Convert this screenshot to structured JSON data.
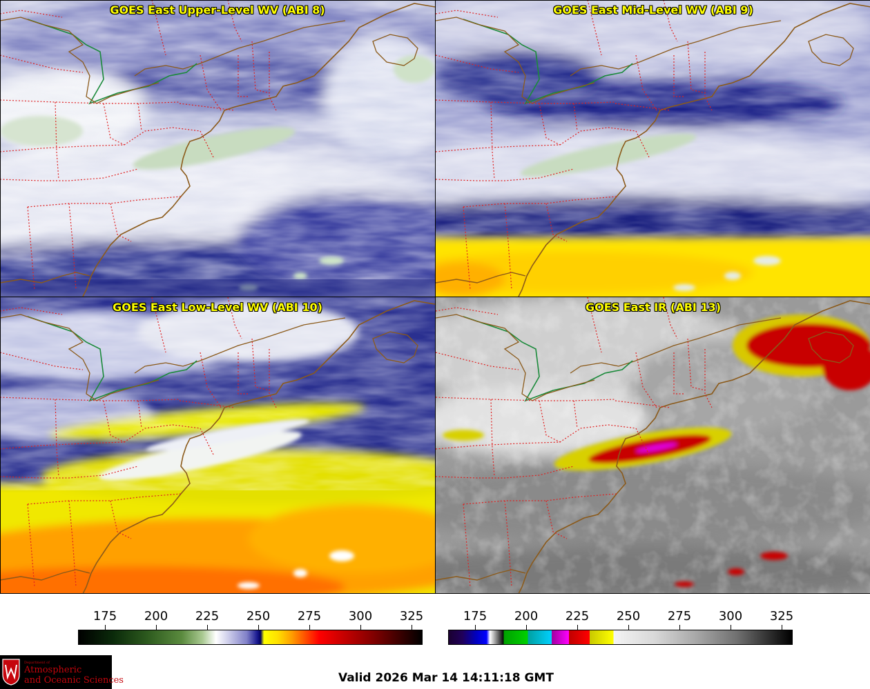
{
  "panels": [
    {
      "title": "GOES East Upper-Level WV (ABI 8)",
      "palette": "wv-upper"
    },
    {
      "title": "GOES East Mid-Level WV (ABI 9)",
      "palette": "wv-mid"
    },
    {
      "title": "GOES East Low-Level WV (ABI 10)",
      "palette": "wv-low"
    },
    {
      "title": "GOES East IR (ABI 13)",
      "palette": "ir"
    }
  ],
  "colorbars": {
    "wv": {
      "ticks": [
        "175",
        "200",
        "225",
        "250",
        "275",
        "300",
        "325"
      ]
    },
    "ir": {
      "ticks": [
        "175",
        "200",
        "225",
        "250",
        "275",
        "300",
        "325"
      ]
    }
  },
  "colors": {
    "state_borders": "#e02020",
    "coastlines": "#8b5a1a",
    "canada_border": "#1a8a3a",
    "wv_dry": "#0c1a7a",
    "wv_moist": "#eeeef6",
    "wv_warm": "#ffe000",
    "ir_cold": "#c80000"
  },
  "logo": {
    "line1": "Department of",
    "line2": "Atmospheric",
    "line3": "and Oceanic Sciences",
    "icon": "uw-crest-icon"
  },
  "footer": {
    "valid": "Valid 2026 Mar 14 14:11:18 GMT"
  }
}
